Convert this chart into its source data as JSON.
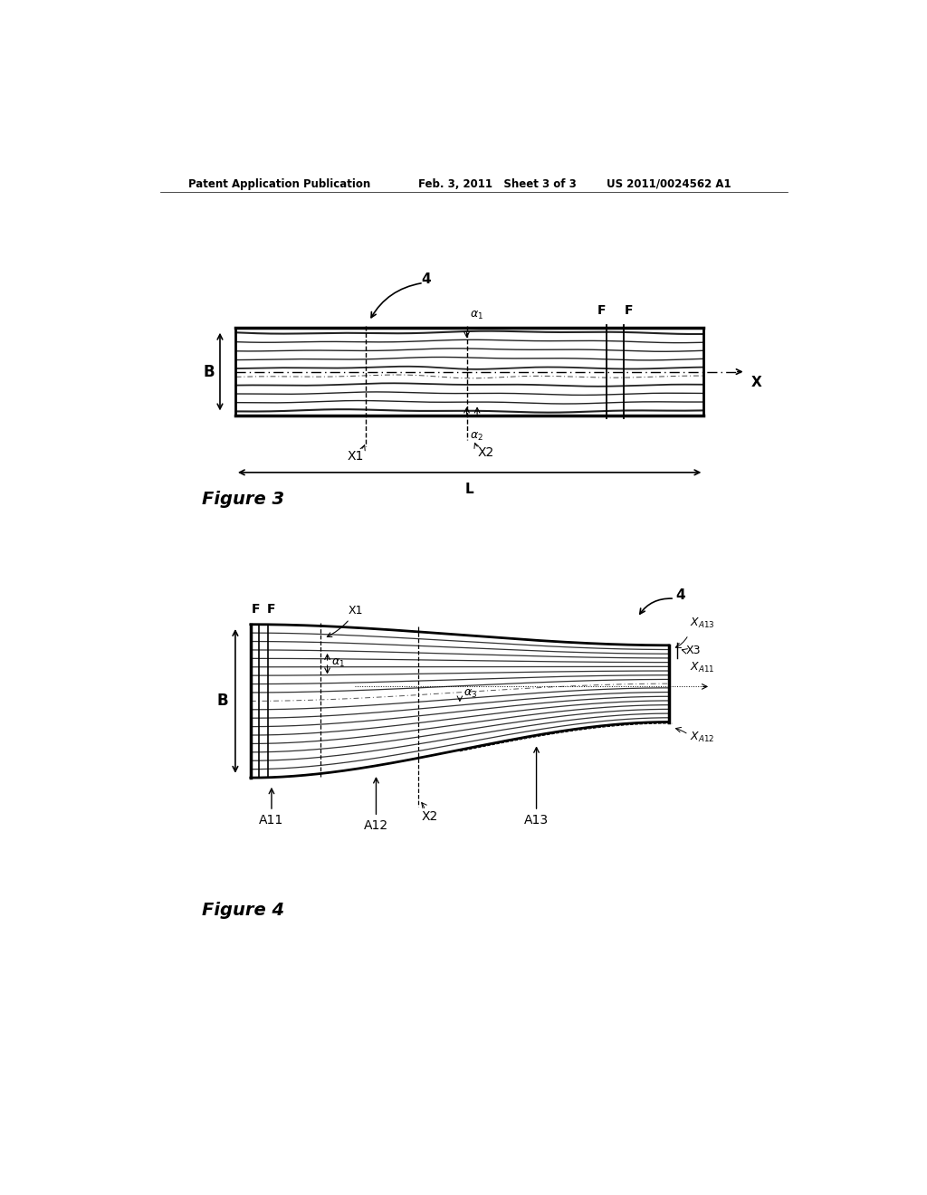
{
  "bg_color": "#ffffff",
  "header_left": "Patent Application Publication",
  "header_mid": "Feb. 3, 2011   Sheet 3 of 3",
  "header_right": "US 2011/0024562 A1",
  "fig3_label": "Figure 3",
  "fig4_label": "Figure 4"
}
